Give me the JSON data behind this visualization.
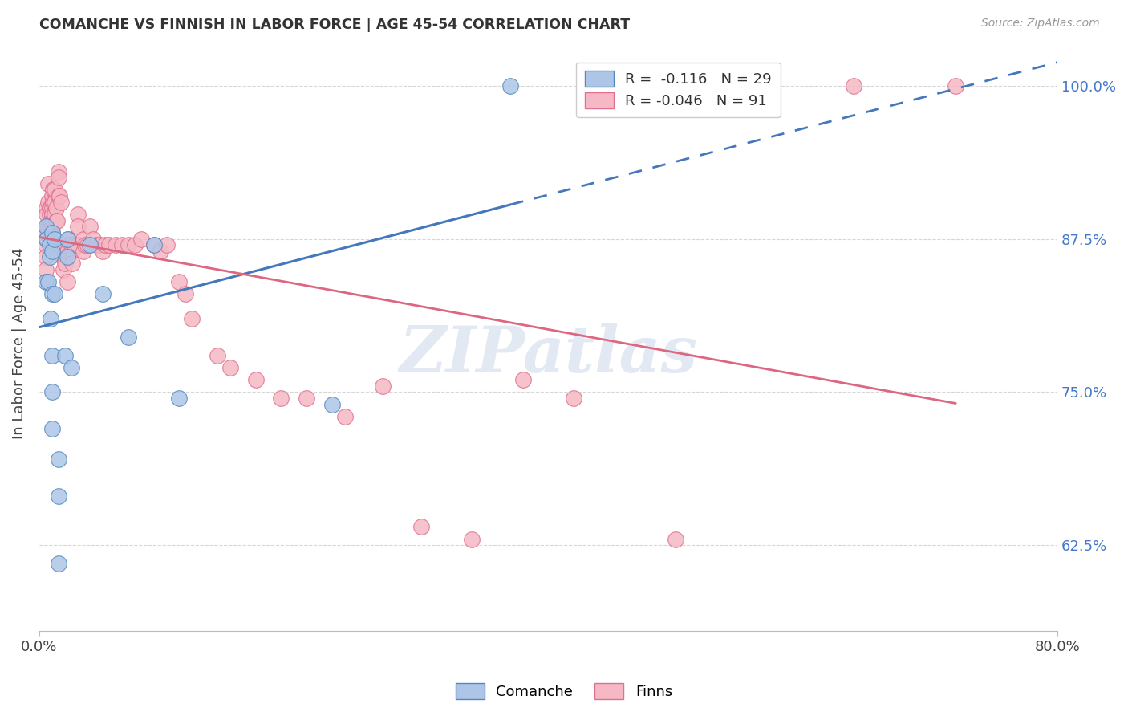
{
  "title": "COMANCHE VS FINNISH IN LABOR FORCE | AGE 45-54 CORRELATION CHART",
  "source": "Source: ZipAtlas.com",
  "ylabel": "In Labor Force | Age 45-54",
  "xlim": [
    0.0,
    0.8
  ],
  "ylim": [
    0.555,
    1.025
  ],
  "y_ticks": [
    0.625,
    0.75,
    0.875,
    1.0
  ],
  "y_tick_labels": [
    "62.5%",
    "75.0%",
    "87.5%",
    "100.0%"
  ],
  "x_ticks": [
    0.0,
    0.8
  ],
  "x_tick_labels": [
    "0.0%",
    "80.0%"
  ],
  "legend_R_blue": "-0.116",
  "legend_N_blue": "29",
  "legend_R_pink": "-0.046",
  "legend_N_pink": "91",
  "legend_labels": [
    "Comanche",
    "Finns"
  ],
  "blue_fill": "#adc6e8",
  "blue_edge": "#5588bb",
  "blue_line": "#4477bb",
  "pink_fill": "#f5b8c4",
  "pink_edge": "#e07090",
  "pink_line": "#dd6680",
  "watermark": "ZIPatlas",
  "watermark_color": "#ccd8e8",
  "bg_color": "#ffffff",
  "grid_color": "#cccccc",
  "comanche_x": [
    0.005,
    0.005,
    0.006,
    0.007,
    0.008,
    0.008,
    0.009,
    0.01,
    0.01,
    0.01,
    0.01,
    0.01,
    0.01,
    0.012,
    0.012,
    0.015,
    0.015,
    0.015,
    0.02,
    0.022,
    0.022,
    0.025,
    0.04,
    0.05,
    0.07,
    0.09,
    0.11,
    0.23,
    0.37
  ],
  "comanche_y": [
    0.885,
    0.84,
    0.875,
    0.84,
    0.87,
    0.86,
    0.81,
    0.88,
    0.865,
    0.83,
    0.78,
    0.75,
    0.72,
    0.875,
    0.83,
    0.695,
    0.665,
    0.61,
    0.78,
    0.875,
    0.86,
    0.77,
    0.87,
    0.83,
    0.795,
    0.87,
    0.745,
    0.74,
    1.0
  ],
  "finns_x": [
    0.004,
    0.005,
    0.005,
    0.005,
    0.006,
    0.006,
    0.006,
    0.006,
    0.007,
    0.007,
    0.007,
    0.008,
    0.008,
    0.008,
    0.008,
    0.009,
    0.009,
    0.009,
    0.01,
    0.01,
    0.01,
    0.01,
    0.01,
    0.01,
    0.01,
    0.011,
    0.011,
    0.011,
    0.012,
    0.012,
    0.012,
    0.013,
    0.013,
    0.014,
    0.015,
    0.015,
    0.015,
    0.016,
    0.017,
    0.018,
    0.018,
    0.019,
    0.02,
    0.021,
    0.022,
    0.022,
    0.023,
    0.024,
    0.025,
    0.026,
    0.026,
    0.028,
    0.03,
    0.03,
    0.03,
    0.035,
    0.035,
    0.036,
    0.038,
    0.04,
    0.042,
    0.045,
    0.048,
    0.05,
    0.052,
    0.055,
    0.06,
    0.065,
    0.07,
    0.075,
    0.08,
    0.09,
    0.095,
    0.1,
    0.11,
    0.115,
    0.12,
    0.14,
    0.15,
    0.17,
    0.19,
    0.21,
    0.24,
    0.27,
    0.3,
    0.34,
    0.38,
    0.42,
    0.5,
    0.64,
    0.72
  ],
  "finns_y": [
    0.88,
    0.87,
    0.86,
    0.85,
    0.9,
    0.895,
    0.885,
    0.875,
    0.92,
    0.905,
    0.885,
    0.9,
    0.895,
    0.885,
    0.875,
    0.9,
    0.89,
    0.88,
    0.91,
    0.9,
    0.895,
    0.89,
    0.885,
    0.88,
    0.875,
    0.915,
    0.905,
    0.89,
    0.915,
    0.905,
    0.895,
    0.9,
    0.89,
    0.89,
    0.93,
    0.925,
    0.91,
    0.91,
    0.905,
    0.87,
    0.86,
    0.85,
    0.855,
    0.87,
    0.865,
    0.84,
    0.875,
    0.87,
    0.87,
    0.865,
    0.855,
    0.87,
    0.895,
    0.885,
    0.87,
    0.875,
    0.865,
    0.87,
    0.87,
    0.885,
    0.875,
    0.87,
    0.87,
    0.865,
    0.87,
    0.87,
    0.87,
    0.87,
    0.87,
    0.87,
    0.875,
    0.87,
    0.865,
    0.87,
    0.84,
    0.83,
    0.81,
    0.78,
    0.77,
    0.76,
    0.745,
    0.745,
    0.73,
    0.755,
    0.64,
    0.63,
    0.76,
    0.745,
    0.63,
    1.0,
    1.0
  ]
}
